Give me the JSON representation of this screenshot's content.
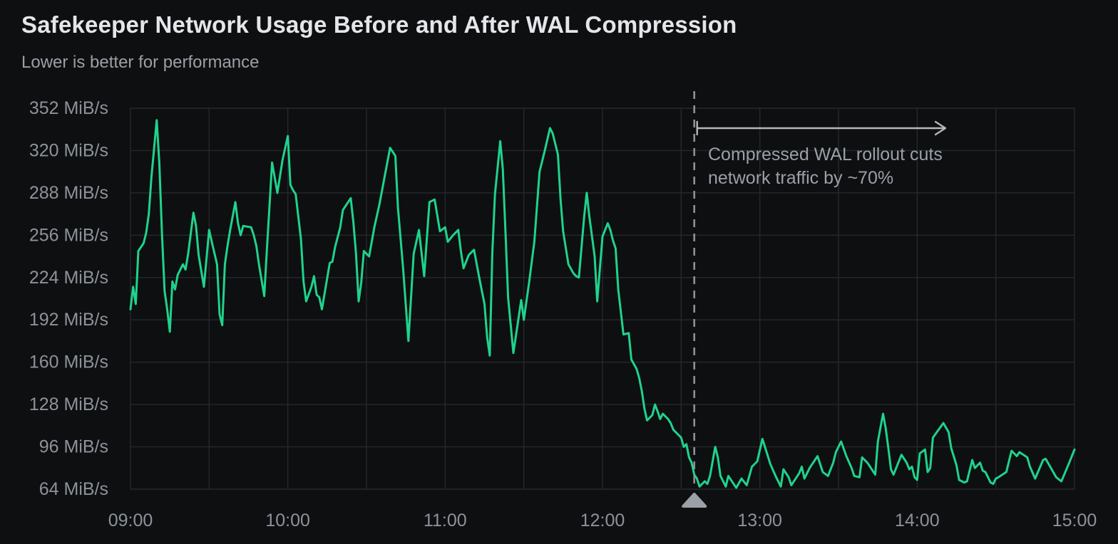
{
  "header": {
    "title": "Safekeeper Network Usage Before and After WAL Compression",
    "subtitle": "Lower is better for performance"
  },
  "colors": {
    "background": "#0e0f11",
    "grid": "#26282c",
    "series_green": "#1fd38c",
    "title_text": "#e4e6e9",
    "subtitle_text": "#9aa0a6",
    "tick_text": "#8d929a",
    "annotation_text": "#9aa0a8",
    "annotation_dash": "#8d9198",
    "annotation_arrow": "#b4b8be",
    "annotation_marker": "#9aa0a6"
  },
  "annotation": {
    "line1": "Compressed WAL rollout cuts",
    "line2": "network traffic by ~70%",
    "rollout_minute": 215,
    "rollout_time": "12:35"
  },
  "chart_data": {
    "type": "line",
    "title": "Safekeeper Network Usage Before and After WAL Compression",
    "subtitle": "Lower is better for performance",
    "unit": "MiB/s",
    "xlabel": "",
    "ylabel": "",
    "x_start_time": "09:00",
    "x_end_time": "15:00",
    "x_ticks": [
      "09:00",
      "10:00",
      "11:00",
      "12:00",
      "13:00",
      "14:00",
      "15:00"
    ],
    "x_tick_minutes": [
      0,
      60,
      120,
      180,
      240,
      300,
      360
    ],
    "x_gridline_step_minutes": 30,
    "y_ticks": [
      352,
      320,
      288,
      256,
      224,
      192,
      160,
      128,
      96,
      64
    ],
    "y_tick_suffix": " MiB/s",
    "ylim": [
      64,
      352
    ],
    "xlim_minutes": [
      0,
      360
    ],
    "grid": true,
    "legend": false,
    "series": [
      {
        "name": "safekeeper-network-usage",
        "color": "#1fd38c",
        "points_format": "[minutes_after_09:00, MiB_per_s]",
        "points": [
          [
            0,
            200
          ],
          [
            1,
            217
          ],
          [
            2,
            204
          ],
          [
            3,
            244
          ],
          [
            5,
            250
          ],
          [
            6,
            258
          ],
          [
            7,
            272
          ],
          [
            8,
            300
          ],
          [
            10,
            343
          ],
          [
            11,
            310
          ],
          [
            12,
            258
          ],
          [
            13,
            214
          ],
          [
            14,
            200
          ],
          [
            15,
            183
          ],
          [
            16,
            221
          ],
          [
            17,
            215
          ],
          [
            18,
            226
          ],
          [
            20,
            234
          ],
          [
            21,
            230
          ],
          [
            22,
            242
          ],
          [
            24,
            273
          ],
          [
            25,
            263
          ],
          [
            26,
            241
          ],
          [
            28,
            217
          ],
          [
            30,
            260
          ],
          [
            31,
            251
          ],
          [
            33,
            234
          ],
          [
            34,
            196
          ],
          [
            35,
            188
          ],
          [
            36,
            234
          ],
          [
            37,
            248
          ],
          [
            38,
            260
          ],
          [
            40,
            281
          ],
          [
            41,
            265
          ],
          [
            42,
            256
          ],
          [
            43,
            263
          ],
          [
            46,
            262
          ],
          [
            47,
            256
          ],
          [
            48,
            248
          ],
          [
            49,
            234
          ],
          [
            51,
            210
          ],
          [
            52,
            244
          ],
          [
            54,
            311
          ],
          [
            56,
            288
          ],
          [
            58,
            313
          ],
          [
            60,
            331
          ],
          [
            61,
            294
          ],
          [
            62,
            290
          ],
          [
            63,
            287
          ],
          [
            65,
            253
          ],
          [
            66,
            221
          ],
          [
            67,
            206
          ],
          [
            69,
            217
          ],
          [
            70,
            225
          ],
          [
            71,
            211
          ],
          [
            72,
            209
          ],
          [
            73,
            200
          ],
          [
            76,
            235
          ],
          [
            77,
            236
          ],
          [
            78,
            247
          ],
          [
            80,
            262
          ],
          [
            81,
            275
          ],
          [
            84,
            284
          ],
          [
            85,
            266
          ],
          [
            86,
            242
          ],
          [
            87,
            206
          ],
          [
            88,
            220
          ],
          [
            89,
            244
          ],
          [
            91,
            240
          ],
          [
            93,
            262
          ],
          [
            95,
            280
          ],
          [
            97,
            301
          ],
          [
            99,
            322
          ],
          [
            101,
            316
          ],
          [
            102,
            277
          ],
          [
            104,
            230
          ],
          [
            106,
            176
          ],
          [
            108,
            242
          ],
          [
            110,
            260
          ],
          [
            112,
            225
          ],
          [
            114,
            281
          ],
          [
            116,
            283
          ],
          [
            118,
            259
          ],
          [
            120,
            262
          ],
          [
            121,
            251
          ],
          [
            123,
            256
          ],
          [
            125,
            260
          ],
          [
            126,
            244
          ],
          [
            127,
            231
          ],
          [
            129,
            241
          ],
          [
            131,
            245
          ],
          [
            133,
            224
          ],
          [
            135,
            204
          ],
          [
            136,
            179
          ],
          [
            137,
            165
          ],
          [
            138,
            243
          ],
          [
            139,
            287
          ],
          [
            141,
            327
          ],
          [
            142,
            306
          ],
          [
            143,
            259
          ],
          [
            144,
            209
          ],
          [
            146,
            167
          ],
          [
            147,
            180
          ],
          [
            149,
            207
          ],
          [
            150,
            192
          ],
          [
            152,
            220
          ],
          [
            154,
            251
          ],
          [
            156,
            304
          ],
          [
            158,
            320
          ],
          [
            160,
            337
          ],
          [
            161,
            333
          ],
          [
            163,
            317
          ],
          [
            164,
            283
          ],
          [
            165,
            259
          ],
          [
            167,
            234
          ],
          [
            169,
            227
          ],
          [
            170,
            225
          ],
          [
            171,
            224
          ],
          [
            173,
            270
          ],
          [
            174,
            288
          ],
          [
            175,
            270
          ],
          [
            177,
            240
          ],
          [
            178,
            206
          ],
          [
            180,
            255
          ],
          [
            182,
            265
          ],
          [
            183,
            260
          ],
          [
            184,
            252
          ],
          [
            185,
            246
          ],
          [
            186,
            215
          ],
          [
            188,
            181
          ],
          [
            190,
            182
          ],
          [
            191,
            162
          ],
          [
            193,
            155
          ],
          [
            194,
            148
          ],
          [
            195,
            138
          ],
          [
            196,
            125
          ],
          [
            197,
            116
          ],
          [
            199,
            120
          ],
          [
            200,
            128
          ],
          [
            201,
            123
          ],
          [
            202,
            117
          ],
          [
            203,
            121
          ],
          [
            205,
            117
          ],
          [
            206,
            114
          ],
          [
            207,
            109
          ],
          [
            210,
            103
          ],
          [
            211,
            96
          ],
          [
            212,
            98
          ],
          [
            213,
            88
          ],
          [
            214,
            84
          ],
          [
            215,
            75
          ],
          [
            216,
            72
          ],
          [
            217,
            66
          ],
          [
            219,
            70
          ],
          [
            220,
            68
          ],
          [
            221,
            74
          ],
          [
            223,
            96
          ],
          [
            224,
            88
          ],
          [
            225,
            74
          ],
          [
            227,
            66
          ],
          [
            228,
            74
          ],
          [
            230,
            68
          ],
          [
            231,
            65
          ],
          [
            233,
            72
          ],
          [
            235,
            67
          ],
          [
            237,
            81
          ],
          [
            239,
            85
          ],
          [
            241,
            102
          ],
          [
            244,
            83
          ],
          [
            246,
            74
          ],
          [
            248,
            66
          ],
          [
            249,
            79
          ],
          [
            251,
            73
          ],
          [
            252,
            67
          ],
          [
            255,
            76
          ],
          [
            256,
            81
          ],
          [
            257,
            72
          ],
          [
            259,
            80
          ],
          [
            260,
            83
          ],
          [
            262,
            89
          ],
          [
            264,
            77
          ],
          [
            266,
            74
          ],
          [
            268,
            84
          ],
          [
            269,
            92
          ],
          [
            271,
            100
          ],
          [
            273,
            89
          ],
          [
            275,
            80
          ],
          [
            276,
            74
          ],
          [
            278,
            73
          ],
          [
            279,
            88
          ],
          [
            281,
            84
          ],
          [
            284,
            75
          ],
          [
            285,
            100
          ],
          [
            287,
            121
          ],
          [
            288,
            110
          ],
          [
            289,
            95
          ],
          [
            290,
            79
          ],
          [
            291,
            75
          ],
          [
            293,
            85
          ],
          [
            294,
            90
          ],
          [
            296,
            84
          ],
          [
            297,
            79
          ],
          [
            298,
            81
          ],
          [
            299,
            73
          ],
          [
            300,
            71
          ],
          [
            301,
            91
          ],
          [
            303,
            94
          ],
          [
            304,
            77
          ],
          [
            305,
            80
          ],
          [
            306,
            103
          ],
          [
            310,
            114
          ],
          [
            312,
            107
          ],
          [
            313,
            95
          ],
          [
            315,
            82
          ],
          [
            316,
            71
          ],
          [
            318,
            69
          ],
          [
            319,
            70
          ],
          [
            321,
            86
          ],
          [
            322,
            80
          ],
          [
            324,
            84
          ],
          [
            325,
            78
          ],
          [
            326,
            77
          ],
          [
            328,
            69
          ],
          [
            329,
            68
          ],
          [
            330,
            72
          ],
          [
            331,
            73
          ],
          [
            334,
            77
          ],
          [
            336,
            93
          ],
          [
            338,
            89
          ],
          [
            339,
            92
          ],
          [
            342,
            88
          ],
          [
            343,
            81
          ],
          [
            345,
            72
          ],
          [
            348,
            86
          ],
          [
            349,
            87
          ],
          [
            351,
            80
          ],
          [
            353,
            73
          ],
          [
            355,
            70
          ],
          [
            358,
            84
          ],
          [
            360,
            94
          ]
        ]
      }
    ],
    "annotations": [
      {
        "type": "vertical-dashed-line-with-arrow",
        "x_minute": 215,
        "text_line1": "Compressed WAL rollout cuts",
        "text_line2": "network traffic by ~70%"
      }
    ]
  }
}
